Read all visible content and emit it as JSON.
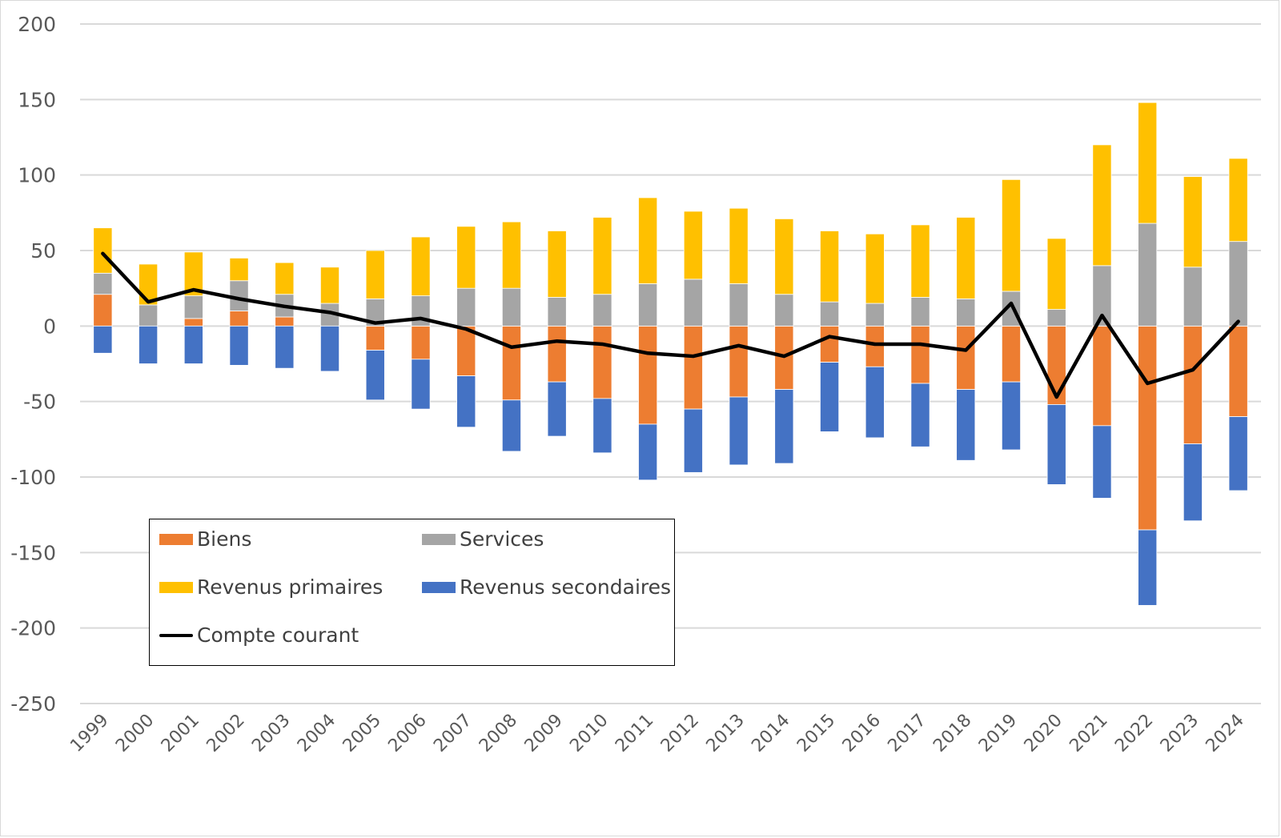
{
  "chart_data": {
    "type": "bar",
    "subtype": "stacked-bar-with-line",
    "title": "",
    "xlabel": "",
    "ylabel": "",
    "ylim": [
      -250,
      200
    ],
    "yticks": [
      200,
      150,
      100,
      50,
      0,
      -50,
      -100,
      -150,
      -200,
      -250
    ],
    "grid": true,
    "legend_position": "bottom-left (inside plot)",
    "categories": [
      "1999",
      "2000",
      "2001",
      "2002",
      "2003",
      "2004",
      "2005",
      "2006",
      "2007",
      "2008",
      "2009",
      "2010",
      "2011",
      "2012",
      "2013",
      "2014",
      "2015",
      "2016",
      "2017",
      "2018",
      "2019",
      "2020",
      "2021",
      "2022",
      "2023",
      "2024"
    ],
    "series": [
      {
        "name": "Biens",
        "kind": "bar",
        "color": "#ED7D31",
        "values": [
          21,
          0,
          5,
          10,
          6,
          0,
          -16,
          -22,
          -33,
          -49,
          -37,
          -48,
          -65,
          -55,
          -47,
          -42,
          -24,
          -27,
          -38,
          -42,
          -37,
          -52,
          -66,
          -135,
          -78,
          -60
        ]
      },
      {
        "name": "Services",
        "kind": "bar",
        "color": "#A5A5A5",
        "values": [
          14,
          14,
          15,
          20,
          15,
          15,
          18,
          20,
          25,
          25,
          19,
          21,
          28,
          31,
          28,
          21,
          16,
          15,
          19,
          18,
          23,
          11,
          40,
          68,
          39,
          56
        ]
      },
      {
        "name": "Revenus primaires",
        "kind": "bar",
        "color": "#FFC000",
        "values": [
          30,
          27,
          29,
          15,
          21,
          24,
          32,
          39,
          41,
          44,
          44,
          51,
          57,
          45,
          50,
          50,
          47,
          46,
          48,
          54,
          74,
          47,
          80,
          80,
          60,
          55
        ]
      },
      {
        "name": "Revenus secondaires",
        "kind": "bar",
        "color": "#4472C4",
        "values": [
          -18,
          -25,
          -25,
          -26,
          -28,
          -30,
          -33,
          -33,
          -34,
          -34,
          -36,
          -36,
          -37,
          -42,
          -45,
          -49,
          -46,
          -47,
          -42,
          -47,
          -45,
          -53,
          -48,
          -50,
          -51,
          -49
        ]
      },
      {
        "name": "Compte courant",
        "kind": "line",
        "color": "#000000",
        "values": [
          48,
          16,
          24,
          18,
          13,
          9,
          2,
          5,
          -2,
          -14,
          -10,
          -12,
          -18,
          -20,
          -13,
          -20,
          -7,
          -12,
          -12,
          -16,
          15,
          -47,
          7,
          -38,
          -29,
          3
        ]
      }
    ]
  },
  "legend": {
    "items": [
      {
        "label": "Biens",
        "color": "#ED7D31",
        "kind": "bar"
      },
      {
        "label": "Services",
        "color": "#A5A5A5",
        "kind": "bar"
      },
      {
        "label": "Revenus primaires",
        "color": "#FFC000",
        "kind": "bar"
      },
      {
        "label": "Revenus secondaires",
        "color": "#4472C4",
        "kind": "bar"
      },
      {
        "label": "Compte courant",
        "color": "#000000",
        "kind": "line"
      }
    ]
  }
}
